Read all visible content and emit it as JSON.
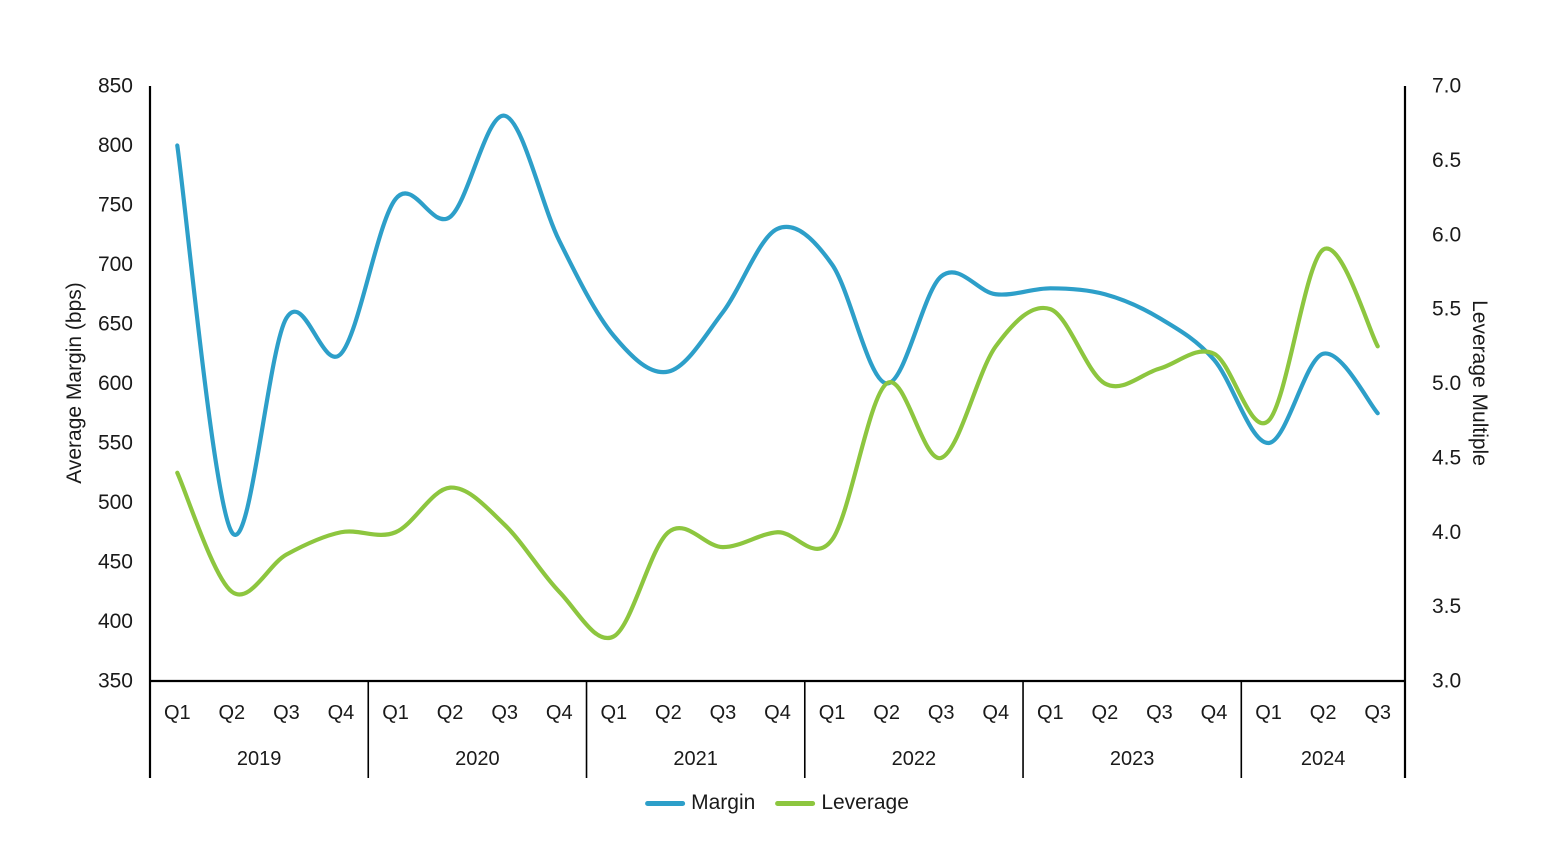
{
  "chart_data": {
    "type": "line",
    "smooth": true,
    "grid": false,
    "x_axis": {
      "quarter_labels": [
        "Q1",
        "Q2",
        "Q3",
        "Q4",
        "Q1",
        "Q2",
        "Q3",
        "Q4",
        "Q1",
        "Q2",
        "Q3",
        "Q4",
        "Q1",
        "Q2",
        "Q3",
        "Q4",
        "Q1",
        "Q2",
        "Q3",
        "Q4",
        "Q1",
        "Q2",
        "Q3"
      ],
      "year_labels": [
        "2019",
        "2020",
        "2021",
        "2022",
        "2023",
        "2024"
      ],
      "quarters_per_year": [
        4,
        4,
        4,
        4,
        4,
        3
      ]
    },
    "left_axis": {
      "label": "Average Margin (bps)",
      "min": 350,
      "max": 850,
      "step": 50,
      "ticks": [
        "850",
        "800",
        "750",
        "700",
        "650",
        "600",
        "550",
        "500",
        "450",
        "400",
        "350"
      ]
    },
    "right_axis": {
      "label": "Leverage Multiple",
      "min": 3.0,
      "max": 7.0,
      "step": 0.5,
      "ticks": [
        "7.0",
        "6.5",
        "6.0",
        "5.5",
        "5.0",
        "4.5",
        "4.0",
        "3.5",
        "3.0"
      ]
    },
    "series": [
      {
        "name": "Margin",
        "axis": "left",
        "color": "#2D9FC9",
        "values": [
          800,
          475,
          655,
          625,
          755,
          740,
          825,
          720,
          640,
          610,
          660,
          730,
          700,
          600,
          690,
          675,
          680,
          675,
          655,
          620,
          550,
          625,
          575
        ]
      },
      {
        "name": "Leverage",
        "axis": "right",
        "color": "#8DC63F",
        "values": [
          4.4,
          3.6,
          3.85,
          4.0,
          4.0,
          4.3,
          4.05,
          3.6,
          3.3,
          4.0,
          3.9,
          4.0,
          3.95,
          5.0,
          4.5,
          5.25,
          5.5,
          5.0,
          5.1,
          5.2,
          4.75,
          5.9,
          5.25
        ]
      }
    ],
    "legend": {
      "position": "bottom",
      "entries": [
        "Margin",
        "Leverage"
      ]
    }
  },
  "colors": {
    "background": "#ffffff",
    "axis_line": "#000000",
    "text": "#1a1a1a",
    "margin_line": "#2D9FC9",
    "leverage_line": "#8DC63F"
  }
}
